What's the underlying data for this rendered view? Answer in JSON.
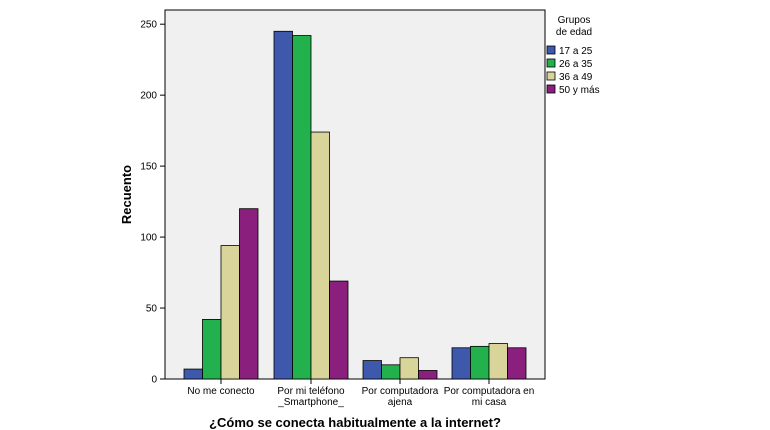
{
  "chart_data": {
    "type": "bar",
    "title": "",
    "xlabel": "¿Cómo se conecta habitualmente a la internet?",
    "ylabel": "Recuento",
    "ylim": [
      0,
      260
    ],
    "yticks": [
      0,
      50,
      100,
      150,
      200,
      250
    ],
    "grid": false,
    "legend_position": "top-right",
    "legend_title": [
      "Grupos",
      "de edad"
    ],
    "categories": [
      [
        "No me conecto"
      ],
      [
        "Por mi teléfono",
        "_Smartphone_"
      ],
      [
        "Por computadora",
        "ajena"
      ],
      [
        "Por computadora en",
        "mi casa"
      ]
    ],
    "series": [
      {
        "name": "17 a 25",
        "color": "#3E58AC",
        "values": [
          7,
          245,
          13,
          22
        ]
      },
      {
        "name": "26 a 35",
        "color": "#22B14C",
        "values": [
          42,
          242,
          10,
          23
        ]
      },
      {
        "name": "36 a 49",
        "color": "#D9D59A",
        "values": [
          94,
          174,
          15,
          25
        ]
      },
      {
        "name": "50 y más",
        "color": "#8B1F7E",
        "values": [
          120,
          69,
          6,
          22
        ]
      }
    ],
    "colors": {
      "plot_background": "#F0F0F0",
      "axis": "#000000",
      "bar_stroke": "#000000"
    }
  }
}
